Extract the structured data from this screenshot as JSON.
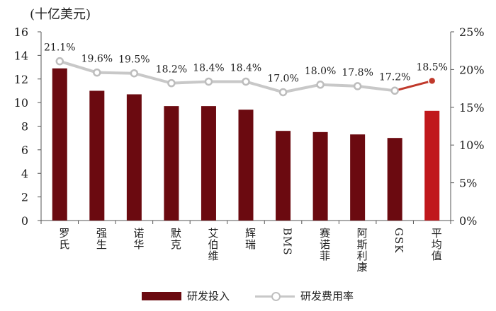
{
  "unit_label": "(十亿美元)",
  "colors": {
    "bar": "#6b0a10",
    "bar_highlight": "#c0181c",
    "line": "#c8c8c8",
    "line_highlight": "#c0392b",
    "axis": "#555555"
  },
  "chart_data": {
    "type": "bar",
    "categories": [
      "罗氏",
      "强生",
      "诺华",
      "默克",
      "艾伯维",
      "辉瑞",
      "BMS",
      "赛诺菲",
      "阿斯利康",
      "GSK",
      "平均值"
    ],
    "series": [
      {
        "name": "研发投入",
        "type": "bar",
        "axis": "left",
        "values": [
          12.9,
          11.0,
          10.7,
          9.7,
          9.7,
          9.4,
          7.6,
          7.5,
          7.3,
          7.0,
          9.3
        ]
      },
      {
        "name": "研发费用率",
        "type": "line",
        "axis": "right",
        "values": [
          21.1,
          19.6,
          19.5,
          18.2,
          18.4,
          18.4,
          17.0,
          18.0,
          17.8,
          17.2,
          18.5
        ],
        "labels": [
          "21.1%",
          "19.6%",
          "19.5%",
          "18.2%",
          "18.4%",
          "18.4%",
          "17.0%",
          "18.0%",
          "17.8%",
          "17.2%",
          "18.5%"
        ]
      }
    ],
    "y_left": {
      "ylim": [
        0,
        16
      ],
      "ticks": [
        "0",
        "2",
        "4",
        "6",
        "8",
        "10",
        "12",
        "14",
        "16"
      ]
    },
    "y_right": {
      "ylim": [
        0,
        25
      ],
      "ticks": [
        "0%",
        "5%",
        "10%",
        "15%",
        "20%",
        "25%"
      ]
    },
    "legend": {
      "position": "bottom",
      "entries": [
        "研发投入",
        "研发费用率"
      ]
    }
  }
}
